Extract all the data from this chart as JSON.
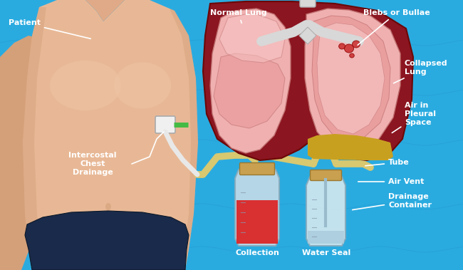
{
  "bg_color": "#2aabe0",
  "body_color": "#e8b896",
  "body_shadow": "#c8936a",
  "body_highlight": "#f0c8a8",
  "arm_color": "#d4a07a",
  "pants_color": "#1a2a4a",
  "neck_color": "#e0aa88",
  "lung_bg": "#8b1520",
  "lung_pink": "#f0b0b0",
  "lung_lobe": "#e89898",
  "lung_inner": "#f8c8c8",
  "bronchi_color": "#d8d8d8",
  "fluid_color": "#c8a020",
  "bleb_color": "#cc3333",
  "bottle_glass": "#c8dde8",
  "bottle_glass2": "#d8eaf0",
  "bottle_outline": "#88aabb",
  "cork_color": "#c8a050",
  "cork_outline": "#9a7830",
  "red_liquid": "#dd2222",
  "water_liquid": "#aaccdd",
  "tube_color": "#d8c870",
  "tube_outline": "#b0a040",
  "green_tube": "#44bb44",
  "device_color": "#f0f0f0",
  "device_outline": "#aaaaaa",
  "white_tube": "#e8e8e8",
  "ecg_color": "#1888c0",
  "labels": {
    "patient": "Patient",
    "normal_lung": "Normal Lung",
    "blebs": "Blebs or Bullae",
    "collapsed": "Collapsed\nLung",
    "air_pleural": "Air in\nPleural\nSpace",
    "intercostal": "Intercostal\nChest\nDrainage",
    "tube": "Tube",
    "air_vent": "Air Vent",
    "drainage": "Drainage\nContainer",
    "collection": "Collection",
    "water_seal": "Water Seal"
  }
}
